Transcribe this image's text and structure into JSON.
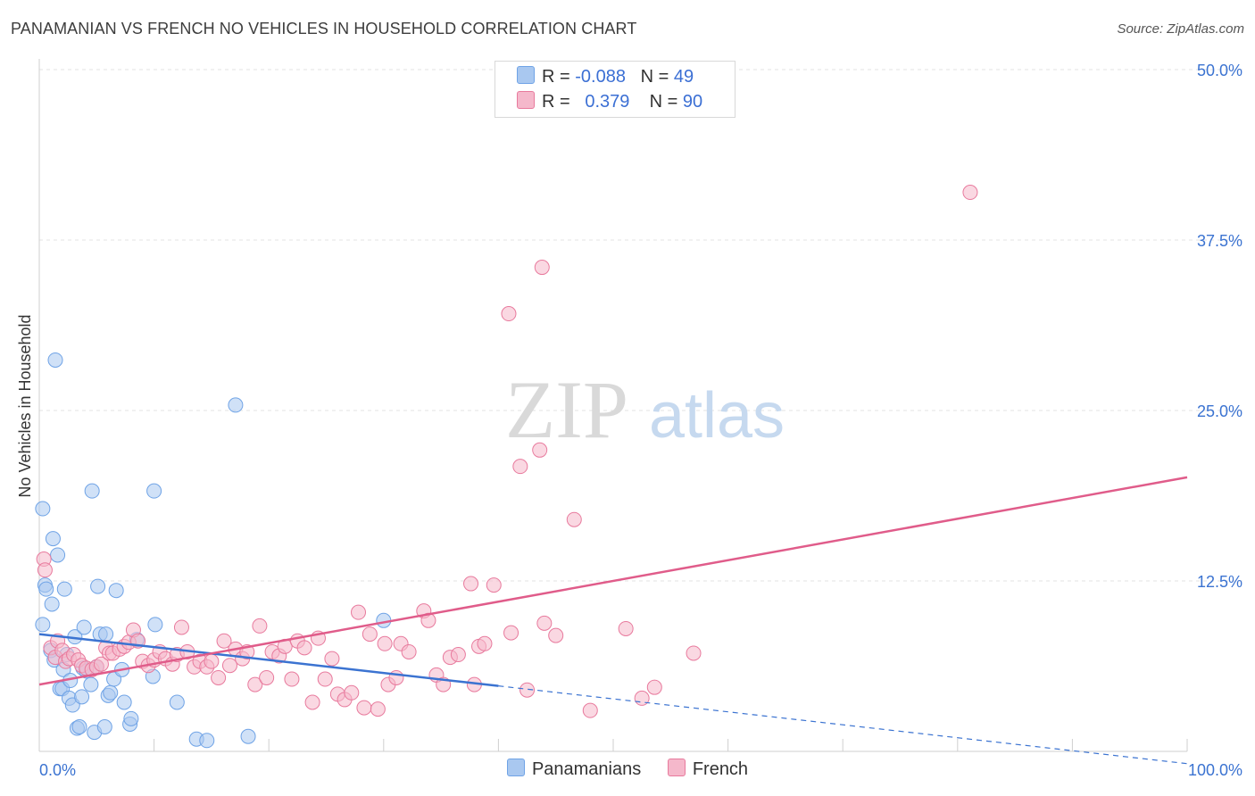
{
  "header": {
    "title": "PANAMANIAN VS FRENCH NO VEHICLES IN HOUSEHOLD CORRELATION CHART",
    "source": "Source: ZipAtlas.com"
  },
  "watermark": {
    "zip": "ZIP",
    "atlas": "atlas"
  },
  "legend": {
    "rows": [
      {
        "r_label": "R =",
        "r_value": "-0.088",
        "n_label": "N =",
        "n_value": "49",
        "color": "#a9c8f0"
      },
      {
        "r_label": "R =",
        "r_value": "0.379",
        "n_label": "N =",
        "n_value": "90",
        "color": "#f5b8cb"
      }
    ]
  },
  "bottom_legend": [
    {
      "label": "Panamanians",
      "color": "#a9c8f0"
    },
    {
      "label": "French",
      "color": "#f5b8cb"
    }
  ],
  "chart_data": {
    "type": "scatter",
    "title": "PANAMANIAN VS FRENCH NO VEHICLES IN HOUSEHOLD CORRELATION CHART",
    "xlabel": "",
    "ylabel": "No Vehicles in Household",
    "xlim": [
      0,
      100
    ],
    "ylim": [
      0,
      50
    ],
    "x_tick_labels": [
      "0.0%",
      "100.0%"
    ],
    "y_ticks": [
      12.5,
      25.0,
      37.5,
      50.0
    ],
    "y_tick_labels": [
      "12.5%",
      "25.0%",
      "37.5%",
      "50.0%"
    ],
    "grid": true,
    "legend_position": "top-center",
    "series": [
      {
        "name": "Panamanians",
        "color": "#6fa3e6",
        "fill": "#a9c8f0",
        "trend": {
          "x_solid": [
            0,
            40
          ],
          "y_solid": [
            8.6,
            4.8
          ],
          "x_dashed": [
            40,
            100
          ],
          "y_dashed": [
            4.8,
            -0.9
          ],
          "color": "#3b73d1"
        },
        "points": [
          [
            0.3,
            17.8
          ],
          [
            0.3,
            9.3
          ],
          [
            0.5,
            12.2
          ],
          [
            0.6,
            11.9
          ],
          [
            1.0,
            7.4
          ],
          [
            1.1,
            10.8
          ],
          [
            1.2,
            15.6
          ],
          [
            1.3,
            6.7
          ],
          [
            1.4,
            28.7
          ],
          [
            1.6,
            14.4
          ],
          [
            1.8,
            4.6
          ],
          [
            2.0,
            4.6
          ],
          [
            2.1,
            6.0
          ],
          [
            2.2,
            11.9
          ],
          [
            2.4,
            7.1
          ],
          [
            2.6,
            3.9
          ],
          [
            2.7,
            5.2
          ],
          [
            2.9,
            3.4
          ],
          [
            3.1,
            8.4
          ],
          [
            3.3,
            1.7
          ],
          [
            3.5,
            1.8
          ],
          [
            3.7,
            4.0
          ],
          [
            3.8,
            6.1
          ],
          [
            3.9,
            9.1
          ],
          [
            4.1,
            5.9
          ],
          [
            4.5,
            4.9
          ],
          [
            4.6,
            19.1
          ],
          [
            4.8,
            1.4
          ],
          [
            5.0,
            6.2
          ],
          [
            5.1,
            12.1
          ],
          [
            5.3,
            8.6
          ],
          [
            5.7,
            1.8
          ],
          [
            5.8,
            8.6
          ],
          [
            6.0,
            4.1
          ],
          [
            6.2,
            4.3
          ],
          [
            6.5,
            5.3
          ],
          [
            6.7,
            11.8
          ],
          [
            7.2,
            6.0
          ],
          [
            7.4,
            3.6
          ],
          [
            7.9,
            2.0
          ],
          [
            8.0,
            2.4
          ],
          [
            8.5,
            8.2
          ],
          [
            9.9,
            5.5
          ],
          [
            10.0,
            19.1
          ],
          [
            10.1,
            9.3
          ],
          [
            12.0,
            3.6
          ],
          [
            13.7,
            0.9
          ],
          [
            14.6,
            0.8
          ],
          [
            17.1,
            25.4
          ],
          [
            18.2,
            1.1
          ],
          [
            30.0,
            9.6
          ]
        ]
      },
      {
        "name": "French",
        "color": "#e87a9d",
        "fill": "#f5b8cb",
        "trend": {
          "x": [
            0,
            100
          ],
          "y": [
            4.9,
            20.1
          ],
          "color": "#e05c8a"
        },
        "points": [
          [
            0.4,
            14.1
          ],
          [
            0.5,
            13.3
          ],
          [
            1.0,
            7.6
          ],
          [
            1.4,
            6.9
          ],
          [
            1.6,
            8.1
          ],
          [
            2.0,
            7.4
          ],
          [
            2.3,
            6.6
          ],
          [
            2.6,
            6.8
          ],
          [
            3.0,
            7.1
          ],
          [
            3.4,
            6.7
          ],
          [
            3.7,
            6.3
          ],
          [
            4.1,
            6.1
          ],
          [
            4.6,
            6.0
          ],
          [
            5.0,
            6.2
          ],
          [
            5.4,
            6.4
          ],
          [
            5.8,
            7.6
          ],
          [
            6.1,
            7.2
          ],
          [
            6.4,
            7.2
          ],
          [
            7.0,
            7.5
          ],
          [
            7.4,
            7.7
          ],
          [
            7.8,
            8.0
          ],
          [
            8.2,
            8.9
          ],
          [
            8.6,
            8.1
          ],
          [
            9.0,
            6.6
          ],
          [
            9.5,
            6.3
          ],
          [
            10.0,
            6.7
          ],
          [
            10.5,
            7.3
          ],
          [
            11.0,
            6.8
          ],
          [
            11.6,
            6.4
          ],
          [
            12.0,
            7.1
          ],
          [
            12.4,
            9.1
          ],
          [
            12.9,
            7.3
          ],
          [
            13.5,
            6.2
          ],
          [
            14.0,
            6.6
          ],
          [
            14.6,
            6.2
          ],
          [
            15.0,
            6.6
          ],
          [
            15.6,
            5.4
          ],
          [
            16.1,
            8.1
          ],
          [
            16.6,
            6.3
          ],
          [
            17.1,
            7.5
          ],
          [
            17.7,
            6.8
          ],
          [
            18.1,
            7.3
          ],
          [
            18.8,
            4.9
          ],
          [
            19.2,
            9.2
          ],
          [
            19.8,
            5.4
          ],
          [
            20.3,
            7.3
          ],
          [
            20.9,
            7.0
          ],
          [
            21.4,
            7.7
          ],
          [
            22.0,
            5.3
          ],
          [
            22.5,
            8.1
          ],
          [
            23.1,
            7.6
          ],
          [
            23.8,
            3.6
          ],
          [
            24.3,
            8.3
          ],
          [
            24.9,
            5.3
          ],
          [
            25.5,
            6.8
          ],
          [
            26.0,
            4.2
          ],
          [
            26.6,
            3.8
          ],
          [
            27.2,
            4.3
          ],
          [
            27.8,
            10.2
          ],
          [
            28.3,
            3.2
          ],
          [
            28.8,
            8.6
          ],
          [
            29.5,
            3.1
          ],
          [
            30.1,
            7.9
          ],
          [
            30.4,
            4.9
          ],
          [
            31.1,
            5.4
          ],
          [
            31.5,
            7.9
          ],
          [
            32.2,
            7.3
          ],
          [
            33.5,
            10.3
          ],
          [
            33.9,
            9.6
          ],
          [
            34.6,
            5.6
          ],
          [
            35.2,
            4.9
          ],
          [
            35.8,
            6.9
          ],
          [
            36.5,
            7.1
          ],
          [
            37.6,
            12.3
          ],
          [
            37.9,
            4.9
          ],
          [
            38.3,
            7.7
          ],
          [
            38.8,
            7.9
          ],
          [
            39.6,
            12.2
          ],
          [
            40.9,
            32.1
          ],
          [
            41.1,
            8.7
          ],
          [
            41.9,
            20.9
          ],
          [
            42.5,
            4.5
          ],
          [
            43.6,
            22.1
          ],
          [
            44.0,
            9.4
          ],
          [
            43.8,
            35.5
          ],
          [
            45.0,
            8.5
          ],
          [
            46.6,
            17.0
          ],
          [
            48.0,
            3.0
          ],
          [
            51.1,
            9.0
          ],
          [
            52.5,
            3.9
          ],
          [
            53.6,
            4.7
          ],
          [
            57.0,
            7.2
          ],
          [
            81.1,
            41.0
          ]
        ]
      }
    ]
  }
}
